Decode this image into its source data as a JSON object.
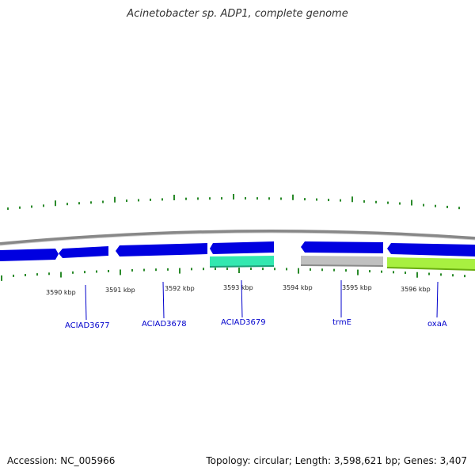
{
  "title": "Acinetobacter sp. ADP1, complete genome",
  "footer": {
    "accession": "Accession: NC_005966",
    "summary": "Topology: circular; Length: 3,598,621 bp; Genes: 3,407"
  },
  "scale": {
    "labels": [
      "3590 kbp",
      "3591 kbp",
      "3592 kbp",
      "3593 kbp",
      "3594 kbp",
      "3595 kbp",
      "3596 kbp"
    ]
  },
  "genes": [
    {
      "name": "ACIAD3677"
    },
    {
      "name": "ACIAD3678"
    },
    {
      "name": "ACIAD3679"
    },
    {
      "name": "trmE"
    },
    {
      "name": "oxaA"
    }
  ],
  "colors": {
    "backbone": "#888888",
    "cds_forward": "#0000e0",
    "feature_teal": "#33e8b0",
    "feature_grey": "#c0c0c0",
    "feature_lime": "#a8f040",
    "gc_skew": "#2a8a2a",
    "label_blue": "#0000cc"
  }
}
